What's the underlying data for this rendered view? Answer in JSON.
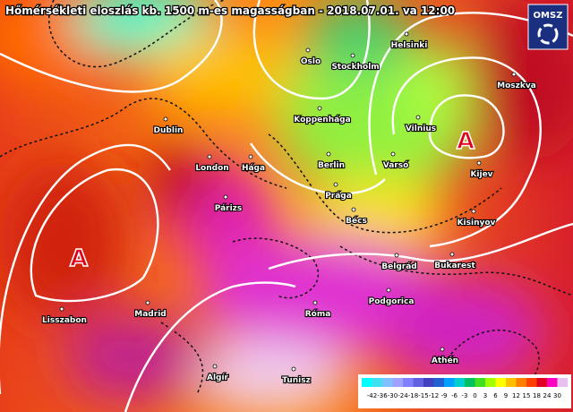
{
  "header": {
    "title": "Hőmérsékleti eloszlás kb. 1500 m-es magasságban - 2018.07.01. va 12:00"
  },
  "logo": {
    "text": "OMSZ"
  },
  "cities": [
    "Oslo",
    "Helsinki",
    "Stockholm",
    "Moszkva",
    "Dublin",
    "Koppenhága",
    "Vilnius",
    "London",
    "Hága",
    "Berlin",
    "Varsó",
    "Kijev",
    "Prága",
    "Párizs",
    "Bécs",
    "Kisinyov",
    "Belgrád",
    "Bukarest",
    "Podgorica",
    "Lisszabon",
    "Madrid",
    "Róma",
    "Athén",
    "Algír",
    "Tunisz"
  ],
  "pressure_centers": [
    "A",
    "A"
  ],
  "colorbar": {
    "ticks": [
      -42,
      -36,
      -30,
      -24,
      -18,
      -15,
      -12,
      -9,
      -6,
      -3,
      0,
      3,
      6,
      9,
      12,
      15,
      18,
      24,
      30
    ]
  }
}
